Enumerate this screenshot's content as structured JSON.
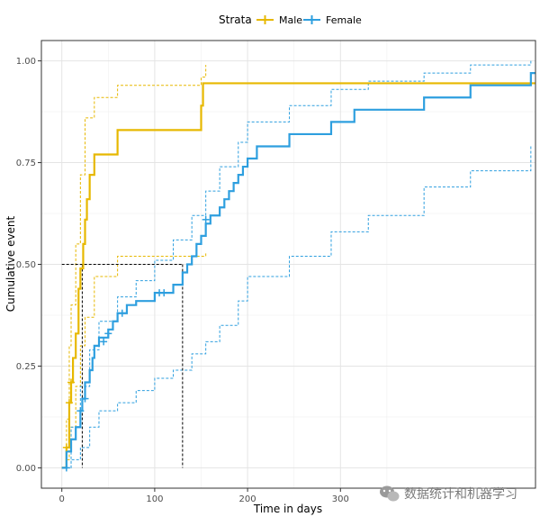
{
  "chart_data": {
    "type": "line",
    "subtype": "step",
    "title": "",
    "xlabel": "Time in days",
    "ylabel": "Cumulative event",
    "xlim": [
      -22,
      510
    ],
    "ylim": [
      -0.05,
      1.05
    ],
    "xticks": [
      0,
      100,
      200,
      300
    ],
    "yticks": [
      0,
      0.25,
      0.5,
      0.75,
      1
    ],
    "ytick_labels": [
      "0.00",
      "0.25",
      "0.50",
      "0.75",
      "1.00"
    ],
    "xtick_labels": [
      "0",
      "100",
      "200",
      "300"
    ],
    "grid": true,
    "legend": {
      "title": "Strata",
      "position": "top",
      "entries": [
        "Male",
        "Female"
      ]
    },
    "median_lines": {
      "y": 0.5,
      "x": [
        22,
        130
      ]
    },
    "series": [
      {
        "name": "Male",
        "color": "#E7B800",
        "x": [
          0,
          5,
          8,
          10,
          12,
          15,
          18,
          20,
          23,
          25,
          27,
          30,
          35,
          40,
          60,
          150,
          152,
          155,
          510
        ],
        "y": [
          0,
          0.05,
          0.16,
          0.21,
          0.27,
          0.33,
          0.44,
          0.49,
          0.55,
          0.61,
          0.66,
          0.72,
          0.77,
          0.77,
          0.83,
          0.89,
          0.945,
          0.945,
          0.945
        ],
        "lower_x": [
          0,
          5,
          8,
          10,
          15,
          20,
          25,
          35,
          60,
          155
        ],
        "lower_y": [
          0,
          0.02,
          0.06,
          0.1,
          0.2,
          0.3,
          0.37,
          0.47,
          0.52,
          0.53
        ],
        "upper_x": [
          0,
          5,
          8,
          10,
          15,
          20,
          25,
          35,
          60,
          150,
          155
        ],
        "upper_y": [
          0,
          0.12,
          0.3,
          0.4,
          0.55,
          0.72,
          0.86,
          0.91,
          0.94,
          0.96,
          0.99
        ],
        "censor_x": [
          5,
          8,
          10
        ],
        "censor_y": [
          0.05,
          0.16,
          0.21
        ]
      },
      {
        "name": "Female",
        "color": "#2E9FDF",
        "x": [
          0,
          5,
          10,
          15,
          20,
          22,
          25,
          30,
          33,
          35,
          40,
          50,
          55,
          60,
          70,
          80,
          100,
          120,
          130,
          135,
          140,
          145,
          150,
          155,
          160,
          170,
          175,
          180,
          185,
          190,
          195,
          200,
          210,
          245,
          290,
          315,
          330,
          390,
          440,
          505,
          510
        ],
        "y": [
          0,
          0.04,
          0.07,
          0.1,
          0.14,
          0.17,
          0.21,
          0.24,
          0.27,
          0.3,
          0.32,
          0.34,
          0.36,
          0.38,
          0.4,
          0.41,
          0.43,
          0.45,
          0.48,
          0.5,
          0.52,
          0.55,
          0.57,
          0.6,
          0.62,
          0.64,
          0.66,
          0.68,
          0.7,
          0.72,
          0.74,
          0.76,
          0.79,
          0.82,
          0.85,
          0.88,
          0.88,
          0.91,
          0.94,
          0.97,
          0.97
        ],
        "lower_x": [
          0,
          10,
          20,
          30,
          40,
          60,
          80,
          100,
          120,
          140,
          155,
          170,
          190,
          200,
          245,
          290,
          330,
          390,
          440,
          505
        ],
        "lower_y": [
          0,
          0.02,
          0.05,
          0.1,
          0.14,
          0.16,
          0.19,
          0.22,
          0.24,
          0.28,
          0.31,
          0.35,
          0.41,
          0.47,
          0.52,
          0.58,
          0.62,
          0.69,
          0.73,
          0.79
        ],
        "upper_x": [
          0,
          10,
          20,
          30,
          40,
          60,
          80,
          100,
          120,
          140,
          155,
          170,
          190,
          200,
          245,
          290,
          330,
          390,
          440,
          505
        ],
        "upper_y": [
          0,
          0.1,
          0.2,
          0.29,
          0.36,
          0.42,
          0.46,
          0.51,
          0.56,
          0.62,
          0.68,
          0.74,
          0.8,
          0.85,
          0.89,
          0.93,
          0.95,
          0.97,
          0.99,
          1.0
        ],
        "censor_x": [
          5,
          20,
          25,
          45,
          50,
          65,
          105,
          110,
          155
        ],
        "censor_y": [
          0.0,
          0.14,
          0.17,
          0.31,
          0.33,
          0.38,
          0.43,
          0.43,
          0.61
        ]
      }
    ]
  },
  "watermark": {
    "text": "数据统计和机器学习",
    "icon": "wechat-icon"
  }
}
